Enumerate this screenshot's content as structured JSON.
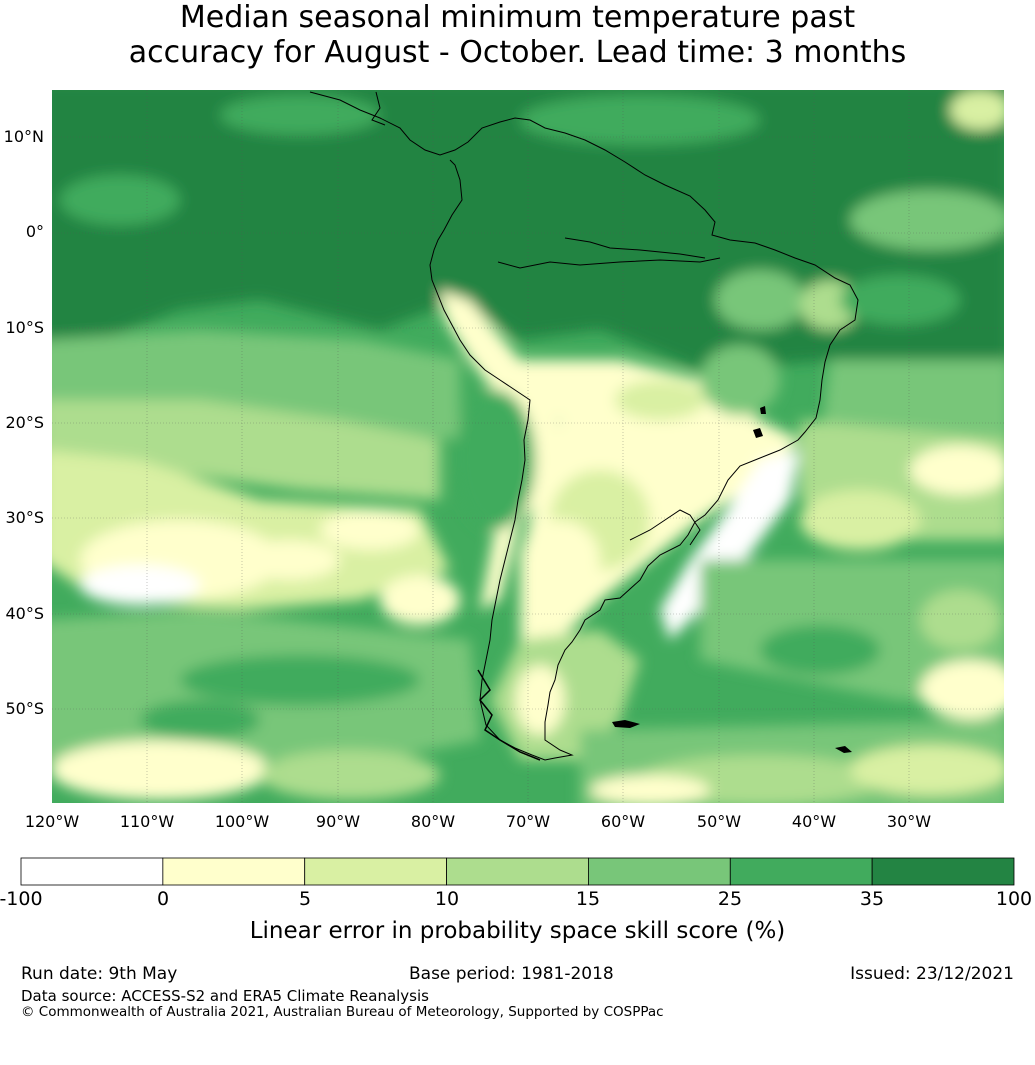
{
  "title_line1": "Median seasonal minimum temperature past",
  "title_line2": "accuracy for August - October. Lead time: 3 months",
  "lat_labels": [
    "10°N",
    "0°",
    "10°S",
    "20°S",
    "30°S",
    "40°S",
    "50°S"
  ],
  "lon_labels": [
    "120°W",
    "110°W",
    "100°W",
    "90°W",
    "80°W",
    "70°W",
    "60°W",
    "50°W",
    "40°W",
    "30°W"
  ],
  "colorbar": {
    "ticks": [
      "-100",
      "0",
      "5",
      "10",
      "15",
      "25",
      "35",
      "100"
    ],
    "colors": [
      "#ffffff",
      "#ffffcc",
      "#d9f0a3",
      "#addd8e",
      "#78c679",
      "#41ab5d",
      "#238443"
    ],
    "label": "Linear error in probability space skill score (%)"
  },
  "footer": {
    "run_date": "Run date: 9th May",
    "base_period": "Base period: 1981-2018",
    "issued": "Issued: 23/12/2021",
    "data_source": "Data source: ACCESS-S2 and ERA5 Climate Reanalysis",
    "copyright": "© Commonwealth of Australia 2021, Australian Bureau of Meteorology, Supported by COSPPac"
  }
}
